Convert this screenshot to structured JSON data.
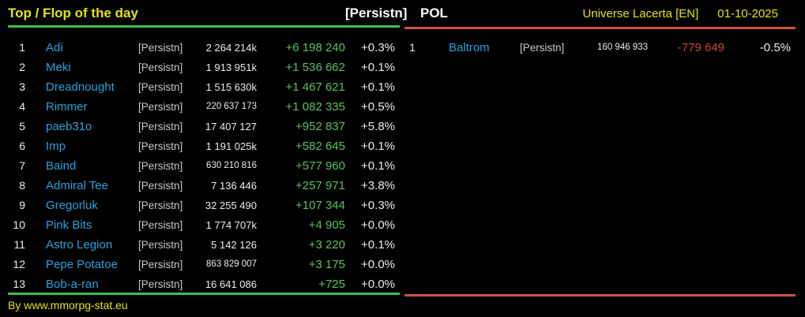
{
  "header": {
    "title": "Top / Flop of the day",
    "alliance_tag": "[Persistn]",
    "country": "POL",
    "universe": "Universe Lacerta [EN]",
    "date": "01-10-2025"
  },
  "top_table": {
    "rows": [
      {
        "rank": "1",
        "name": "Adi",
        "tag": "[Persistn]",
        "points": "2 264 214k",
        "change": "+6 198 240",
        "percent": "+0.3%"
      },
      {
        "rank": "2",
        "name": "Meki",
        "tag": "[Persistn]",
        "points": "1 913 951k",
        "change": "+1 536 662",
        "percent": "+0.1%"
      },
      {
        "rank": "3",
        "name": "Dreadnought",
        "tag": "[Persistn]",
        "points": "1 515 630k",
        "change": "+1 467 621",
        "percent": "+0.1%"
      },
      {
        "rank": "4",
        "name": "Rimmer",
        "tag": "[Persistn]",
        "points": "220 637 173",
        "change": "+1 082 335",
        "percent": "+0.5%"
      },
      {
        "rank": "5",
        "name": "paeb31o",
        "tag": "[Persistn]",
        "points": "17 407 127",
        "change": "+952 837",
        "percent": "+5.8%"
      },
      {
        "rank": "6",
        "name": "Imp",
        "tag": "[Persistn]",
        "points": "1 191 025k",
        "change": "+582 645",
        "percent": "+0.1%"
      },
      {
        "rank": "7",
        "name": "Baind",
        "tag": "[Persistn]",
        "points": "630 210 816",
        "change": "+577 960",
        "percent": "+0.1%"
      },
      {
        "rank": "8",
        "name": "Admiral Tee",
        "tag": "[Persistn]",
        "points": "7 136 446",
        "change": "+257 971",
        "percent": "+3.8%"
      },
      {
        "rank": "9",
        "name": "Gregorluk",
        "tag": "[Persistn]",
        "points": "32 255 490",
        "change": "+107 344",
        "percent": "+0.3%"
      },
      {
        "rank": "10",
        "name": "Pink Bits",
        "tag": "[Persistn]",
        "points": "1 774 707k",
        "change": "+4 905",
        "percent": "+0.0%"
      },
      {
        "rank": "11",
        "name": "Astro Legion",
        "tag": "[Persistn]",
        "points": "5 142 126",
        "change": "+3 220",
        "percent": "+0.1%"
      },
      {
        "rank": "12",
        "name": "Pepe Potatoe",
        "tag": "[Persistn]",
        "points": "863 829 007",
        "change": "+3 175",
        "percent": "+0.0%"
      },
      {
        "rank": "13",
        "name": "Bob-a-ran",
        "tag": "[Persistn]",
        "points": "16 641 086",
        "change": "+725",
        "percent": "+0.0%"
      }
    ]
  },
  "flop_table": {
    "rows": [
      {
        "rank": "1",
        "name": "Baltrom",
        "tag": "[Persistn]",
        "points": "160 946 933",
        "change": "-779 649",
        "percent": "-0.5%"
      }
    ]
  },
  "footer": {
    "credit": "By www.mmorpg-stat.eu"
  },
  "colors": {
    "accent_yellow": "#e2e21a",
    "accent_green": "#3fc24c",
    "accent_red": "#cd5148",
    "name_blue": "#2aa0dc",
    "value_green": "#58c25e",
    "value_red": "#ca423c",
    "tag_gray": "#c9c9c9",
    "text_white": "#ececec"
  }
}
